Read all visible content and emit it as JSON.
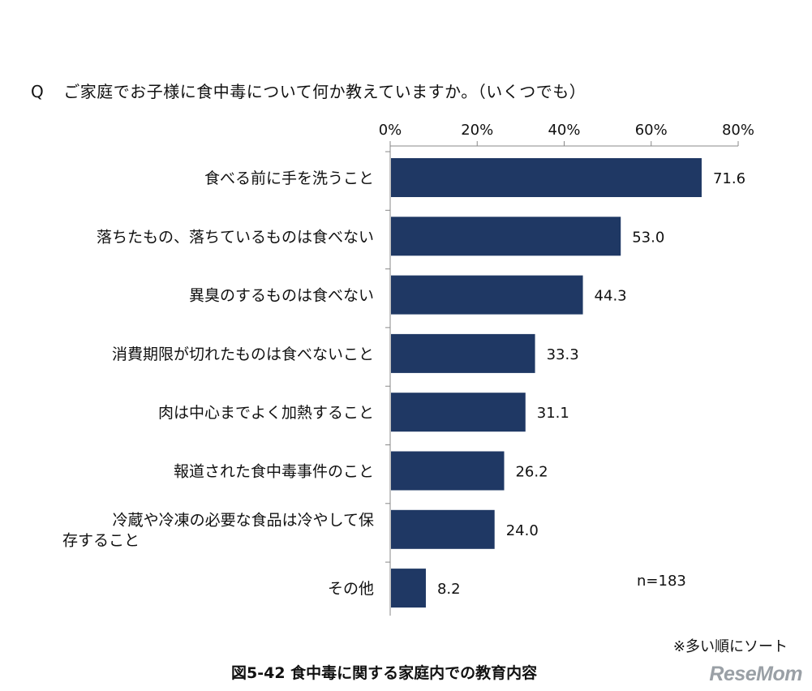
{
  "question": {
    "prefix": "Q",
    "text": "ご家庭でお子様に食中毒について何か教えていますか。（いくつでも）"
  },
  "chart_data": {
    "type": "bar",
    "orientation": "horizontal",
    "categories": [
      [
        "食べる前に手を洗うこと"
      ],
      [
        "落ちたもの、落ちているものは食べない"
      ],
      [
        "異臭のするものは食べない"
      ],
      [
        "消費期限が切れたものは食べないこと"
      ],
      [
        "肉は中心までよく加熱すること"
      ],
      [
        "報道された食中毒事件のこと"
      ],
      [
        "冷蔵や冷凍の必要な食品は冷やして保",
        "存すること"
      ],
      [
        "その他"
      ]
    ],
    "values": [
      71.6,
      53.0,
      44.3,
      33.3,
      31.1,
      26.2,
      24.0,
      8.2
    ],
    "value_labels": [
      "71.6",
      "53.0",
      "44.3",
      "33.3",
      "31.1",
      "26.2",
      "24.0",
      "8.2"
    ],
    "xlim": [
      0,
      80
    ],
    "xticks": [
      0,
      20,
      40,
      60,
      80
    ],
    "xtick_labels": [
      "0%",
      "20%",
      "40%",
      "60%",
      "80%"
    ],
    "bar_color": "#1f3864",
    "sample_note": "n=183",
    "grid": false,
    "legend": "none"
  },
  "sort_note": "※多い順にソート",
  "caption": "図5-42  食中毒に関する家庭内での教育内容",
  "logo_text": "ReseMom"
}
